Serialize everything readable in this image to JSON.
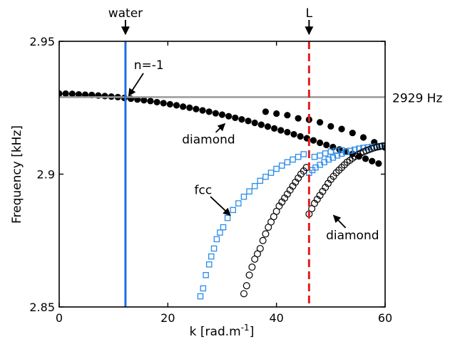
{
  "chart_data": {
    "type": "scatter",
    "xlabel": "k [rad.m",
    "xlabel_sup": "-1",
    "xlabel_close": "]",
    "ylabel": "Frequency [kHz]",
    "xlim": [
      0,
      60
    ],
    "ylim": [
      2.85,
      2.95
    ],
    "x_ticks": [
      0,
      20,
      40,
      60
    ],
    "x_tick_labels": [
      "0",
      "20",
      "40",
      "60"
    ],
    "y_ticks": [
      2.85,
      2.9,
      2.95
    ],
    "y_tick_labels": [
      "2.85",
      "2.9",
      "2.95"
    ],
    "grid": false,
    "colors": {
      "blue": "#1f6fe0",
      "light_blue": "#2a8be8",
      "red": "#e02020",
      "gray": "#9a9a9a",
      "black": "#000000"
    },
    "reference_lines": [
      {
        "orientation": "vertical",
        "x": 12.2,
        "color": "#1f6fe0",
        "style": "solid",
        "label": "water"
      },
      {
        "orientation": "vertical",
        "x": 46,
        "color": "#e02020",
        "style": "dashed",
        "label": "L"
      },
      {
        "orientation": "horizontal",
        "y": 2.929,
        "color": "#9a9a9a",
        "style": "solid",
        "label": "2929 Hz"
      }
    ],
    "series": [
      {
        "marker": "filled-circle",
        "color": "#000000",
        "x": [
          0,
          1.2,
          2.4,
          3.6,
          4.8,
          6,
          7.2,
          8.4,
          9.6,
          10.8,
          12,
          13.2,
          14.4,
          15.6,
          16.8,
          18,
          19.2,
          20.4,
          21.6,
          22.8,
          24,
          25.2,
          26.4,
          27.6,
          28.8,
          30,
          31.2,
          32.4,
          33.6,
          34.8,
          36,
          37.2,
          38.4,
          39.6,
          40.8,
          42,
          43.2,
          44.4,
          45.6,
          46.8,
          48,
          49.2,
          50.4,
          51.6,
          52.8,
          54,
          55.2,
          56.4,
          57.6,
          58.8,
          60,
          38,
          40,
          42,
          44,
          46,
          48,
          50,
          52,
          54,
          56,
          58
        ],
        "y": [
          2.9303,
          2.9303,
          2.9302,
          2.93,
          2.9299,
          2.9298,
          2.9296,
          2.9294,
          2.9292,
          2.929,
          2.9287,
          2.9284,
          2.9281,
          2.9278,
          2.9275,
          2.9271,
          2.9267,
          2.9263,
          2.9259,
          2.9254,
          2.925,
          2.9245,
          2.924,
          2.9235,
          2.9229,
          2.9224,
          2.9218,
          2.9212,
          2.9206,
          2.92,
          2.9193,
          2.9186,
          2.9179,
          2.9172,
          2.9165,
          2.9158,
          2.915,
          2.9142,
          2.9135,
          2.9127,
          2.9118,
          2.911,
          2.9102,
          2.9093,
          2.9085,
          2.9076,
          2.9067,
          2.9058,
          2.9049,
          2.904,
          2.91,
          2.9235,
          2.9228,
          2.9222,
          2.921,
          2.9205,
          2.9195,
          2.918,
          2.917,
          2.9155,
          2.9138,
          2.912
        ]
      },
      {
        "marker": "open-square",
        "color": "#2a8be8",
        "x": [
          26,
          26.5,
          27,
          27.6,
          28,
          28.5,
          29,
          29.6,
          30.2,
          31,
          32,
          33,
          34,
          35,
          36,
          37,
          38,
          39,
          40,
          41,
          42,
          43,
          44,
          45,
          46,
          46.6,
          47.2,
          48,
          48.8,
          49.6,
          50.4,
          51.2,
          52,
          52.8,
          53.6,
          54.4,
          55.2,
          56,
          56.8,
          57.6,
          58.4,
          59.2,
          60,
          47,
          48,
          49,
          50,
          51,
          52
        ],
        "y": [
          2.854,
          2.857,
          2.862,
          2.866,
          2.869,
          2.872,
          2.8755,
          2.878,
          2.88,
          2.8835,
          2.8865,
          2.889,
          2.8915,
          2.8935,
          2.8955,
          2.8975,
          2.899,
          2.9005,
          2.902,
          2.9032,
          2.9045,
          2.9055,
          2.9065,
          2.9075,
          2.9005,
          2.9015,
          2.9025,
          2.9035,
          2.9045,
          2.9055,
          2.9062,
          2.907,
          2.9077,
          2.9083,
          2.9088,
          2.9092,
          2.9096,
          2.9099,
          2.9101,
          2.9103,
          2.9104,
          2.9105,
          2.9107,
          2.9065,
          2.907,
          2.9078,
          2.9085,
          2.9088,
          2.909
        ]
      },
      {
        "marker": "open-circle",
        "color": "#000000",
        "x": [
          34,
          34.5,
          35,
          35.5,
          36,
          36.5,
          37,
          37.5,
          38,
          38.5,
          39,
          39.5,
          40,
          40.5,
          41,
          41.5,
          42,
          42.5,
          43,
          43.5,
          44,
          44.5,
          45,
          45.5,
          46,
          46.5,
          47,
          47.5,
          48,
          48.5,
          49,
          49.5,
          50,
          50.5,
          51,
          51.5,
          52,
          52.5,
          53,
          53.5,
          54,
          54.5,
          55,
          55.5,
          56,
          56.5,
          57,
          57.5,
          58,
          58.5,
          59,
          59.5,
          60
        ],
        "y": [
          2.855,
          2.858,
          2.862,
          2.865,
          2.868,
          2.87,
          2.872,
          2.875,
          2.8775,
          2.88,
          2.882,
          2.884,
          2.886,
          2.888,
          2.8895,
          2.891,
          2.8925,
          2.894,
          2.8955,
          2.897,
          2.8985,
          2.9,
          2.9012,
          2.9025,
          2.885,
          2.887,
          2.889,
          2.8905,
          2.892,
          2.8935,
          2.895,
          2.8965,
          2.898,
          2.8992,
          2.9005,
          2.9015,
          2.9025,
          2.9035,
          2.9045,
          2.9052,
          2.906,
          2.9067,
          2.9073,
          2.9079,
          2.9084,
          2.9088,
          2.9092,
          2.9096,
          2.9099,
          2.9102,
          2.9104,
          2.9106,
          2.9107
        ]
      }
    ],
    "annotations": [
      {
        "text": "n=-1",
        "x": 16.5,
        "y": 2.9395,
        "arrow_to": [
          12.8,
          2.9295
        ]
      },
      {
        "text": "diamond",
        "x": 27.5,
        "y": 2.9115,
        "arrow_to": [
          30.5,
          2.919
        ]
      },
      {
        "text": "fcc",
        "x": 26.5,
        "y": 2.8925,
        "arrow_to": [
          31.5,
          2.8845
        ]
      },
      {
        "text": "diamond",
        "x": 54,
        "y": 2.8755,
        "arrow_to": [
          50.5,
          2.8845
        ]
      }
    ]
  }
}
